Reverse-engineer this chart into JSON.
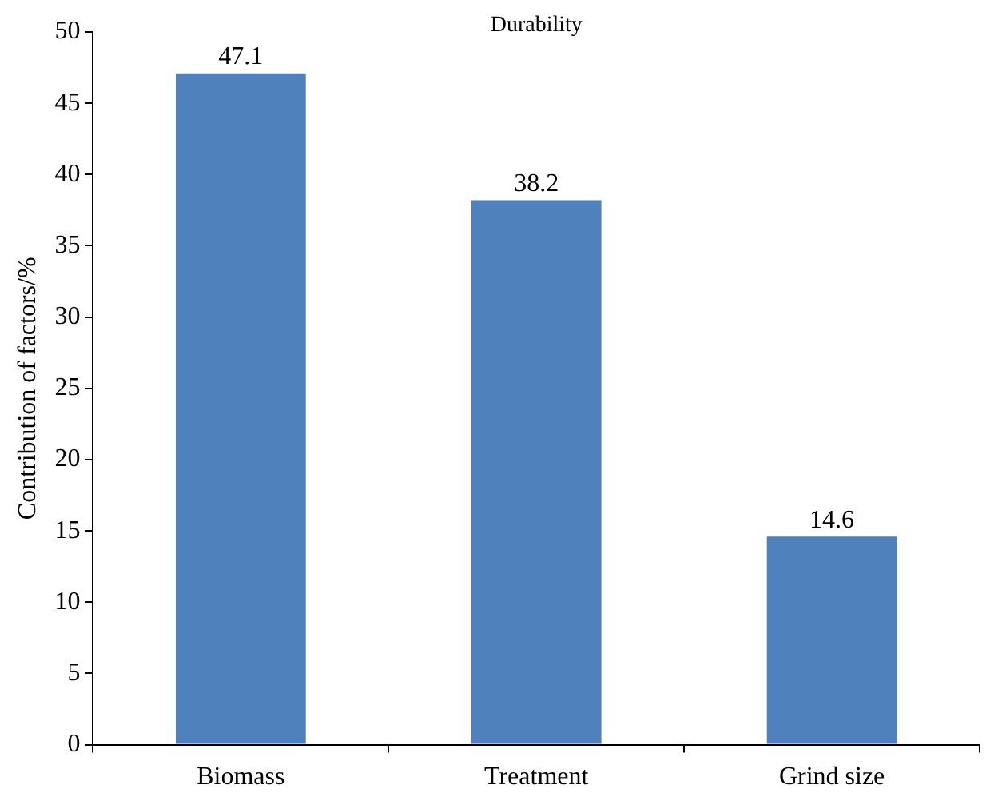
{
  "chart_data": {
    "type": "bar",
    "title": "Durability",
    "ylabel": "Contribution of factors/%",
    "categories": [
      "Biomass",
      "Treatment",
      "Grind size"
    ],
    "values": [
      47.1,
      38.2,
      14.6
    ],
    "color": "#4f81bd",
    "ylim": [
      0,
      50
    ],
    "yticks": [
      0,
      5,
      10,
      15,
      20,
      25,
      30,
      35,
      40,
      45,
      50
    ],
    "grid": false,
    "legend": false,
    "data_labels": true
  }
}
